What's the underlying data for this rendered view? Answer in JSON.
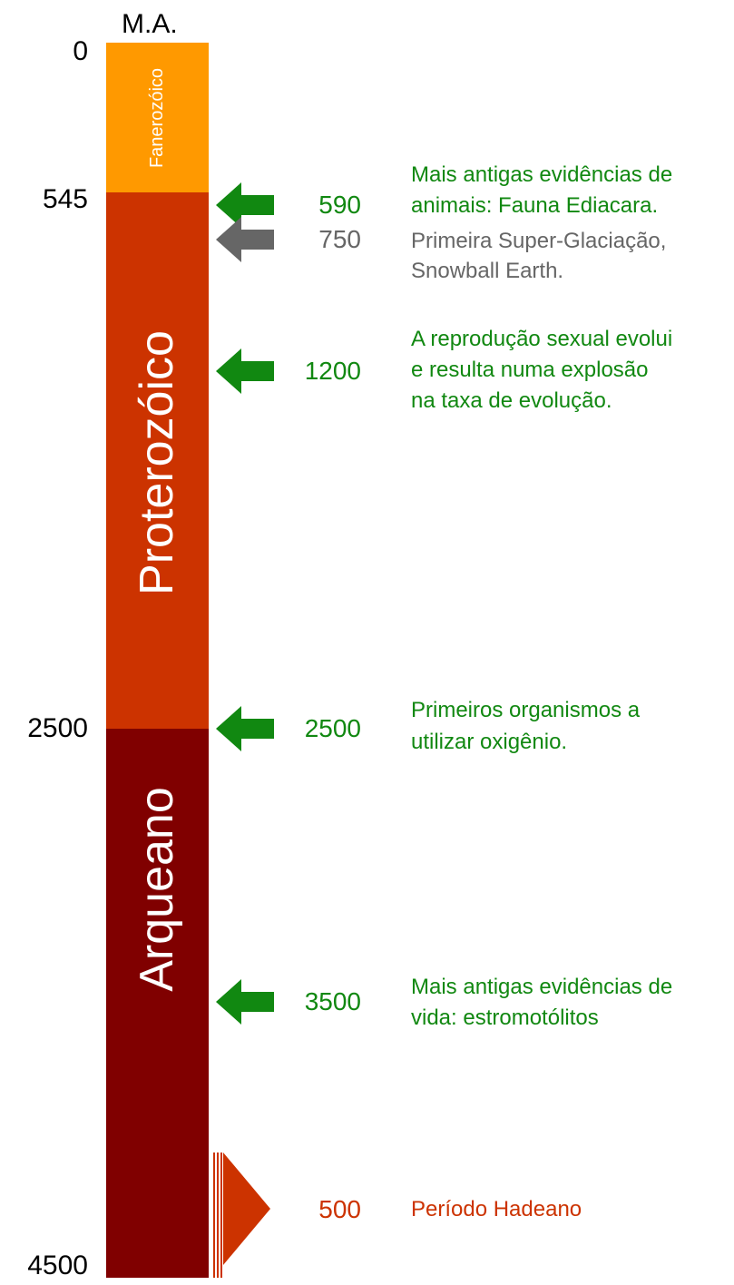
{
  "unit": "M.A.",
  "boundaries": [
    0,
    545,
    2500,
    4500
  ],
  "eons": [
    "Fanerozóico",
    "Proterozóico",
    "Arqueano"
  ],
  "events": [
    {
      "age": 590,
      "text": [
        "Mais antigas evidências de",
        "animais: Fauna Ediacara."
      ]
    },
    {
      "age": 750,
      "text": [
        "Primeira Super-Glaciação,",
        "Snowball Earth."
      ]
    },
    {
      "age": 1200,
      "text": [
        "A reprodução sexual evolui",
        "e resulta numa explosão",
        "na taxa de evolução."
      ]
    },
    {
      "age": 2500,
      "text": [
        "Primeiros organismos a",
        "utilizar oxigênio."
      ]
    },
    {
      "age": 3500,
      "text": [
        "Mais antigas evidências de",
        "vida: estromotólitos"
      ]
    },
    {
      "age": 500,
      "text": [
        "Período Hadeano"
      ]
    }
  ]
}
